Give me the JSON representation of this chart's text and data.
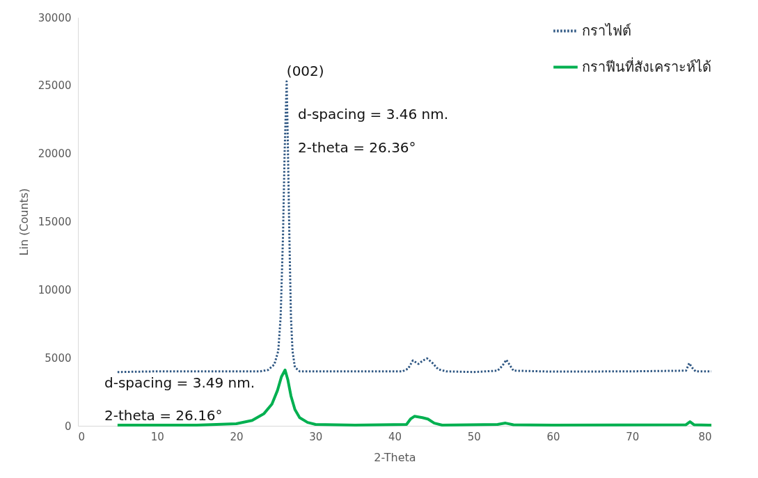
{
  "chart_data": {
    "type": "line",
    "xlabel": "2-Theta",
    "ylabel": "Lin (Counts)",
    "xlim": [
      0,
      80
    ],
    "ylim": [
      0,
      30000
    ],
    "xticks": [
      0,
      10,
      20,
      30,
      40,
      50,
      60,
      70,
      80
    ],
    "yticks": [
      0,
      5000,
      10000,
      15000,
      20000,
      25000,
      30000
    ],
    "grid": false,
    "legend": "top right",
    "marker": "none",
    "series": [
      {
        "name": "กราไฟต์",
        "color": "#2f5783",
        "line_style": "dotted",
        "x": [
          5,
          10,
          15,
          20,
          23,
          24,
          24.8,
          25.3,
          25.6,
          25.9,
          26.1,
          26.36,
          26.5,
          26.7,
          26.9,
          27.1,
          27.4,
          28,
          35,
          41,
          41.7,
          42.3,
          43,
          43.6,
          44.1,
          44.8,
          45.5,
          46.5,
          50,
          53,
          53.6,
          54.1,
          54.5,
          55,
          60,
          70,
          76.8,
          77.2,
          77.6,
          78,
          80
        ],
        "values": [
          3950,
          4000,
          4000,
          4000,
          4000,
          4100,
          4500,
          5500,
          8000,
          14000,
          20000,
          25300,
          21000,
          14000,
          8000,
          5500,
          4300,
          4000,
          4000,
          4000,
          4200,
          4800,
          4550,
          4800,
          4950,
          4600,
          4150,
          4000,
          3950,
          4050,
          4400,
          4850,
          4500,
          4050,
          3980,
          4000,
          4050,
          4600,
          4250,
          4000,
          4000
        ]
      },
      {
        "name": "กราฟีนที่สังเคราะห์ได้",
        "color": "#00b050",
        "line_style": "solid",
        "x": [
          5,
          15,
          20,
          22,
          23.5,
          24.5,
          25.2,
          25.7,
          26.16,
          26.5,
          26.9,
          27.4,
          28,
          29,
          30,
          35,
          41.5,
          42,
          42.5,
          43.5,
          44.2,
          45,
          46,
          53,
          54,
          55,
          60,
          76.8,
          77.3,
          77.8,
          80
        ],
        "values": [
          50,
          50,
          150,
          400,
          900,
          1600,
          2600,
          3600,
          4100,
          3400,
          2200,
          1200,
          600,
          250,
          100,
          50,
          100,
          500,
          700,
          600,
          500,
          200,
          50,
          100,
          200,
          80,
          50,
          80,
          300,
          80,
          50
        ]
      }
    ],
    "annotations": [
      {
        "text": "(002)",
        "x": 26.36,
        "y": 25300
      },
      "d-spacing = 3.46 nm.",
      "2-theta = 26.36°",
      "d-spacing = 3.49 nm.",
      "2-theta = 26.16°"
    ]
  }
}
